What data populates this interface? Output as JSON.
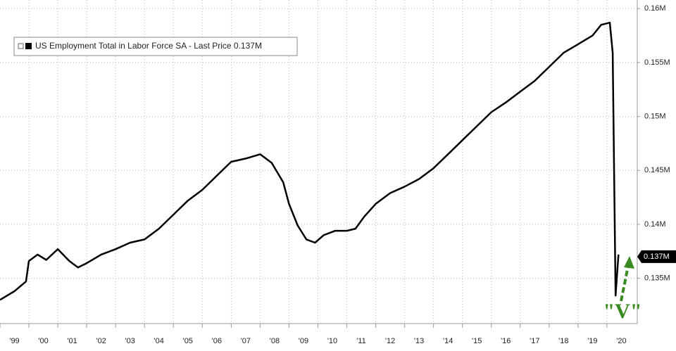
{
  "chart_data": {
    "type": "line",
    "series": [
      {
        "name": "US Employment Total in Labor Force SA",
        "color": "#000000",
        "values": [
          0.133,
          0.1338,
          0.1347,
          0.1366,
          0.1372,
          0.1367,
          0.1377,
          0.1366,
          0.136,
          0.1364,
          0.1372,
          0.1377,
          0.1383,
          0.1386,
          0.1396,
          0.1409,
          0.1422,
          0.1432,
          0.1445,
          0.1458,
          0.1461,
          0.1465,
          0.1457,
          0.1439,
          0.1419,
          0.1399,
          0.1386,
          0.1383,
          0.139,
          0.1394,
          0.1394,
          0.1396,
          0.1407,
          0.1419,
          0.1429,
          0.1435,
          0.1442,
          0.1452,
          0.1465,
          0.1478,
          0.1491,
          0.1504,
          0.1513,
          0.1523,
          0.1533,
          0.1546,
          0.1559,
          0.1567,
          0.1575,
          0.1585,
          0.1587,
          0.1559,
          0.1334,
          0.1372
        ]
      }
    ],
    "x": [
      1999.0,
      1999.5,
      1999.9,
      2000.0,
      2000.3,
      2000.6,
      2001.0,
      2001.4,
      2001.7,
      2002.0,
      2002.5,
      2003.0,
      2003.5,
      2004.0,
      2004.5,
      2005.0,
      2005.5,
      2006.0,
      2006.5,
      2007.0,
      2007.5,
      2008.0,
      2008.4,
      2008.8,
      2009.0,
      2009.3,
      2009.6,
      2009.9,
      2010.2,
      2010.6,
      2011.0,
      2011.3,
      2011.6,
      2012.0,
      2012.5,
      2013.0,
      2013.5,
      2014.0,
      2014.5,
      2015.0,
      2015.5,
      2016.0,
      2016.5,
      2017.0,
      2017.5,
      2018.0,
      2018.5,
      2019.0,
      2019.5,
      2019.8,
      2020.1,
      2020.2,
      2020.3,
      2020.4
    ],
    "xlim": [
      1999,
      2021.05
    ],
    "xticks": [
      {
        "value": 1999,
        "label": "'99"
      },
      {
        "value": 2000,
        "label": "'00"
      },
      {
        "value": 2001,
        "label": "'01"
      },
      {
        "value": 2002,
        "label": "'02"
      },
      {
        "value": 2003,
        "label": "'03"
      },
      {
        "value": 2004,
        "label": "'04"
      },
      {
        "value": 2005,
        "label": "'05"
      },
      {
        "value": 2006,
        "label": "'06"
      },
      {
        "value": 2007,
        "label": "'07"
      },
      {
        "value": 2008,
        "label": "'08"
      },
      {
        "value": 2009,
        "label": "'09"
      },
      {
        "value": 2010,
        "label": "'10"
      },
      {
        "value": 2011,
        "label": "'11"
      },
      {
        "value": 2012,
        "label": "'12"
      },
      {
        "value": 2013,
        "label": "'13"
      },
      {
        "value": 2014,
        "label": "'14"
      },
      {
        "value": 2015,
        "label": "'15"
      },
      {
        "value": 2016,
        "label": "'16"
      },
      {
        "value": 2017,
        "label": "'17"
      },
      {
        "value": 2018,
        "label": "'18"
      },
      {
        "value": 2019,
        "label": "'19"
      },
      {
        "value": 2020,
        "label": "'20"
      }
    ],
    "ylim": [
      0.1308,
      0.1608
    ],
    "yticks": [
      {
        "value": 0.135,
        "label": "0.135M"
      },
      {
        "value": 0.14,
        "label": "0.14M"
      },
      {
        "value": 0.145,
        "label": "0.145M"
      },
      {
        "value": 0.15,
        "label": "0.15M"
      },
      {
        "value": 0.155,
        "label": "0.155M"
      },
      {
        "value": 0.16,
        "label": "0.16M"
      }
    ],
    "grid": true,
    "legend_suffix": "- Last Price 0.137M",
    "last_value": 0.137,
    "last_value_label": "0.137M",
    "annotation": "\"V\""
  }
}
